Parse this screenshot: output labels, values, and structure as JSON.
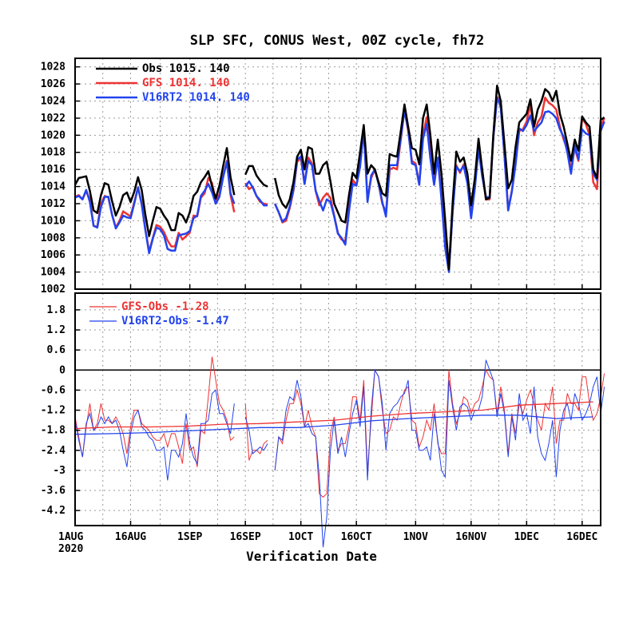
{
  "chart_data": [
    {
      "type": "line",
      "title": "SLP SFC, CONUS West, 00Z cycle, fh72",
      "xlabel": "Verification Date",
      "ylabel": "",
      "ylim": [
        1002,
        1029
      ],
      "yticks": [
        1002,
        1004,
        1006,
        1008,
        1010,
        1012,
        1014,
        1016,
        1018,
        1020,
        1022,
        1024,
        1026,
        1028
      ],
      "xlim": [
        "2020-08-01",
        "2020-12-21"
      ],
      "xticks": [
        "1AUG",
        "16AUG",
        "1SEP",
        "16SEP",
        "1OCT",
        "16OCT",
        "1NOV",
        "16NOV",
        "1DEC",
        "16DEC"
      ],
      "xtick_year": "2020",
      "grid": true,
      "legend_position": "top-left",
      "legend": [
        {
          "label": "Obs",
          "mean": "1015.",
          "count": "140",
          "color": "#000000"
        },
        {
          "label": "GFS",
          "mean": "1014.",
          "count": "140",
          "color": "#ee3333"
        },
        {
          "label": "V16RT2",
          "mean": "1014.",
          "count": "140",
          "color": "#2244ee"
        }
      ],
      "start_date": "2020-08-01",
      "series": [
        {
          "name": "Obs",
          "color": "#000000",
          "values": [
            1014.2,
            1015.0,
            1015.1,
            1015.2,
            1013.5,
            1011.2,
            1010.9,
            1013.0,
            1014.4,
            1014.2,
            1012.3,
            1010.6,
            1011.6,
            1013.0,
            1013.3,
            1012.2,
            1013.4,
            1015.1,
            1013.6,
            1010.7,
            1008.2,
            1010.0,
            1011.6,
            1011.4,
            1010.6,
            1010.0,
            1008.9,
            1008.9,
            1010.9,
            1010.6,
            1009.8,
            1011.0,
            1012.9,
            1013.4,
            1014.5,
            1015.1,
            1015.8,
            1014.0,
            1012.6,
            1014.1,
            1016.4,
            1018.5,
            1015.1,
            1013.0,
            null,
            null,
            1015.4,
            1016.4,
            1016.4,
            1015.3,
            1014.7,
            1014.2,
            1014.0,
            null,
            1015.0,
            1013.0,
            1012.0,
            1011.5,
            1012.5,
            1014.5,
            1017.5,
            1018.3,
            1016.0,
            1018.6,
            1018.4,
            1015.5,
            1015.5,
            1016.5,
            1016.9,
            1014.6,
            1012.0,
            1011.0,
            1010.0,
            1009.8,
            1013.0,
            1015.6,
            1015.0,
            1018.0,
            1021.2,
            1015.5,
            1016.5,
            1016.0,
            1014.5,
            1013.2,
            1012.9,
            1017.8,
            1017.6,
            1017.5,
            1020.5,
            1023.6,
            1021.0,
            1018.5,
            1018.3,
            1016.6,
            1022.0,
            1023.6,
            1020.0,
            1015.5,
            1019.5,
            1015.5,
            1010.0,
            1004.3,
            1012.0,
            1018.1,
            1016.9,
            1017.4,
            1015.5,
            1011.8,
            1015.0,
            1019.6,
            1016.0,
            1012.5,
            1012.7,
            1020.0,
            1025.8,
            1024.0,
            1019.0,
            1013.8,
            1014.8,
            1018.6,
            1021.5,
            1022.0,
            1022.5,
            1024.2,
            1021.0,
            1023.0,
            1024.0,
            1025.4,
            1025.0,
            1024.0,
            1025.2,
            1022.5,
            1021.0,
            1019.0,
            1017.0,
            1019.5,
            1018.2,
            1022.2,
            1021.5,
            1021.0,
            1016.0,
            1015.0,
            1021.8,
            1022.1
          ]
        },
        {
          "name": "GFS",
          "color": "#ee3333",
          "values": [
            1012.8,
            1013.0,
            1012.5,
            1013.5,
            1012.5,
            1009.4,
            1009.3,
            1012.0,
            1012.9,
            1012.7,
            1010.7,
            1009.2,
            1010.0,
            1011.1,
            1010.8,
            1010.5,
            1012.2,
            1013.9,
            1012.0,
            1009.0,
            1006.4,
            1008.0,
            1009.5,
            1009.3,
            1008.7,
            1007.7,
            1007.0,
            1007.0,
            1008.6,
            1007.8,
            1008.2,
            1008.6,
            1010.6,
            1010.5,
            1012.7,
            1013.2,
            1015.0,
            1014.4,
            1012.3,
            1013.1,
            1015.2,
            1017.0,
            1013.0,
            1011.0,
            null,
            null,
            1014.4,
            1013.7,
            1014.0,
            1012.9,
            1012.2,
            1012.0,
            1011.9,
            null,
            1012.0,
            1011.0,
            1009.8,
            1010.0,
            1011.5,
            1013.5,
            1016.9,
            1017.3,
            1014.3,
            1017.4,
            1016.7,
            1013.5,
            1011.8,
            1012.7,
            1013.2,
            1012.7,
            1010.6,
            1008.6,
            1007.8,
            1007.6,
            1011.3,
            1014.8,
            1014.2,
            1016.5,
            1020.9,
            1012.5,
            1015.0,
            1016.0,
            1014.3,
            1012.0,
            1011.0,
            1016.0,
            1016.2,
            1016.0,
            1019.5,
            1023.0,
            1020.5,
            1017.0,
            1016.7,
            1014.3,
            1020.0,
            1022.1,
            1018.2,
            1014.5,
            1017.3,
            1013.0,
            1007.5,
            1004.3,
            1011.0,
            1016.5,
            1015.6,
            1016.6,
            1014.6,
            1010.5,
            1014.0,
            1018.7,
            1015.5,
            1012.5,
            1012.5,
            1019.7,
            1024.5,
            1023.5,
            1017.8,
            1011.3,
            1013.5,
            1016.7,
            1020.5,
            1020.7,
            1021.6,
            1023.6,
            1020.0,
            1021.5,
            1022.2,
            1024.4,
            1023.8,
            1023.5,
            1023.0,
            1021.0,
            1019.5,
            1018.3,
            1016.0,
            1018.5,
            1017.0,
            1022.0,
            1021.3,
            1020.0,
            1014.5,
            1013.7,
            1021.0,
            1022.0
          ]
        },
        {
          "name": "V16RT2",
          "color": "#2244ee",
          "values": [
            1012.7,
            1012.9,
            1012.5,
            1013.6,
            1012.2,
            1009.4,
            1009.2,
            1011.6,
            1012.8,
            1012.8,
            1010.7,
            1009.1,
            1009.8,
            1010.6,
            1010.4,
            1010.3,
            1012.0,
            1013.9,
            1011.9,
            1008.9,
            1006.2,
            1007.9,
            1009.2,
            1009.0,
            1008.3,
            1006.7,
            1006.5,
            1006.5,
            1008.3,
            1008.4,
            1008.5,
            1008.8,
            1010.3,
            1010.6,
            1012.9,
            1013.5,
            1014.3,
            1013.3,
            1012.0,
            1012.8,
            1015.1,
            1016.9,
            1013.2,
            1012.0,
            null,
            null,
            1014.0,
            1014.6,
            1013.9,
            1012.9,
            1012.4,
            1011.8,
            1011.8,
            null,
            1012.0,
            1011.0,
            1009.9,
            1010.3,
            1011.7,
            1013.6,
            1017.2,
            1017.5,
            1014.3,
            1017.0,
            1016.5,
            1013.5,
            1012.3,
            1011.2,
            1012.5,
            1012.2,
            1010.5,
            1008.5,
            1008.0,
            1007.2,
            1011.1,
            1014.3,
            1014.1,
            1016.3,
            1020.7,
            1012.2,
            1015.3,
            1016.0,
            1014.3,
            1012.2,
            1010.5,
            1016.5,
            1016.5,
            1016.5,
            1019.7,
            1022.9,
            1020.7,
            1016.7,
            1016.5,
            1014.2,
            1019.6,
            1021.3,
            1017.3,
            1014.2,
            1017.4,
            1012.5,
            1006.8,
            1004.0,
            1010.9,
            1016.3,
            1015.8,
            1016.4,
            1014.4,
            1010.3,
            1013.8,
            1018.4,
            1015.2,
            1012.8,
            1012.7,
            1019.7,
            1024.4,
            1023.3,
            1017.7,
            1011.2,
            1013.4,
            1016.5,
            1020.8,
            1020.5,
            1021.2,
            1022.3,
            1020.5,
            1021.0,
            1021.5,
            1022.7,
            1022.8,
            1022.5,
            1022.0,
            1020.7,
            1019.8,
            1018.0,
            1015.5,
            1018.8,
            1017.2,
            1020.7,
            1020.2,
            1020.0,
            1015.5,
            1014.8,
            1020.5,
            1021.6
          ]
        }
      ]
    },
    {
      "type": "line",
      "ylim": [
        -4.65,
        2.3
      ],
      "yticks": [
        -4.2,
        -3.6,
        -3,
        -2.4,
        -1.8,
        -1.2,
        -0.6,
        0,
        0.6,
        1.2,
        1.8
      ],
      "ytick_labels": [
        "-4.2",
        "-3.6",
        "-3",
        "-2.4",
        "-1.8",
        "-1.2",
        "-0.6",
        "0",
        "0.6",
        "1.2",
        "1.8"
      ],
      "grid": true,
      "zero_line": true,
      "legend_position": "top-left",
      "legend": [
        {
          "label": "GFS-Obs",
          "mean": "-1.28",
          "color": "#ee3333"
        },
        {
          "label": "V16RT2-Obs",
          "mean": "-1.47",
          "color": "#2244ee"
        }
      ],
      "running_mean": {
        "GFS-Obs": [
          [
            0,
            -1.75
          ],
          [
            10,
            -1.7
          ],
          [
            20,
            -1.7
          ],
          [
            30,
            -1.68
          ],
          [
            40,
            -1.62
          ],
          [
            50,
            -1.6
          ],
          [
            60,
            -1.55
          ],
          [
            70,
            -1.5
          ],
          [
            80,
            -1.38
          ],
          [
            90,
            -1.3
          ],
          [
            100,
            -1.25
          ],
          [
            110,
            -1.2
          ],
          [
            120,
            -1.05
          ],
          [
            130,
            -1.0
          ],
          [
            140,
            -0.95
          ]
        ],
        "V16RT2-Obs": [
          [
            0,
            -1.92
          ],
          [
            10,
            -1.9
          ],
          [
            20,
            -1.87
          ],
          [
            30,
            -1.82
          ],
          [
            40,
            -1.77
          ],
          [
            50,
            -1.72
          ],
          [
            60,
            -1.72
          ],
          [
            70,
            -1.65
          ],
          [
            80,
            -1.52
          ],
          [
            90,
            -1.45
          ],
          [
            100,
            -1.4
          ],
          [
            110,
            -1.35
          ],
          [
            120,
            -1.35
          ],
          [
            130,
            -1.45
          ],
          [
            140,
            -1.4
          ]
        ]
      }
    }
  ]
}
